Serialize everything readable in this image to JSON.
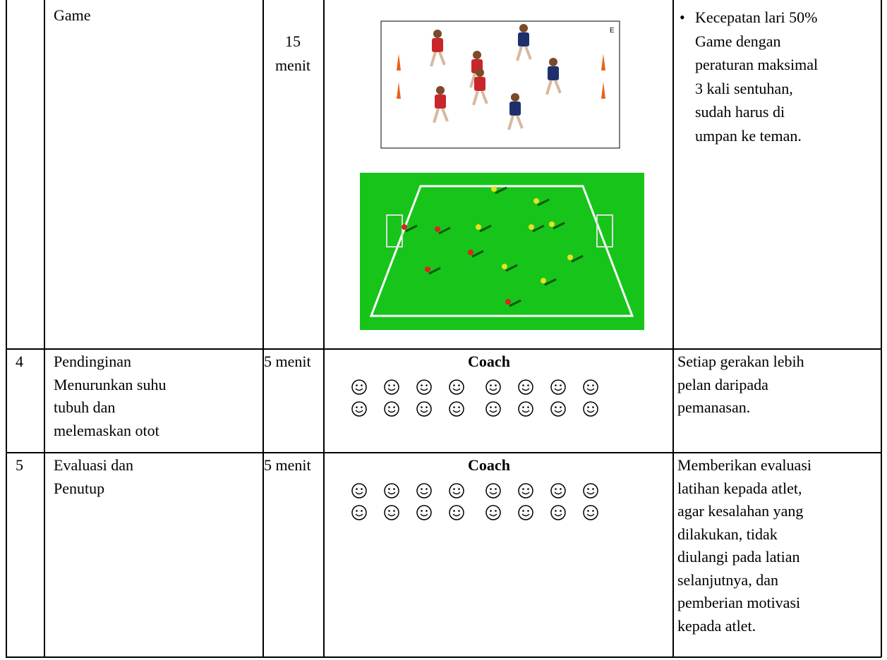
{
  "table": {
    "rows": [
      {
        "activity": [
          "Game"
        ],
        "duration": [
          "15",
          "menit"
        ],
        "picture_label": "E",
        "notes": [
          "Kecepatan lari 50%",
          "Game dengan",
          "peraturan maksimal",
          "3 kali sentuhan,",
          "sudah harus di",
          "umpan ke teman."
        ]
      },
      {
        "number": "4",
        "activity": [
          "Pendinginan",
          "Menurunkan suhu",
          "tubuh dan",
          "melemaskan otot"
        ],
        "duration": [
          "5 menit"
        ],
        "diagram_label": "Coach",
        "notes": [
          "Setiap gerakan lebih",
          "pelan daripada",
          "pemanasan."
        ]
      },
      {
        "number": "5",
        "activity": [
          "Evaluasi dan",
          "Penutup"
        ],
        "duration": [
          "5 menit"
        ],
        "diagram_label": "Coach",
        "notes": [
          "Memberikan evaluasi",
          "latihan kepada atlet,",
          "agar kesalahan yang",
          "dilakukan, tidak",
          "diulangi pada latian",
          "selanjutnya, dan",
          "pemberian motivasi",
          "kepada atlet."
        ]
      }
    ]
  }
}
